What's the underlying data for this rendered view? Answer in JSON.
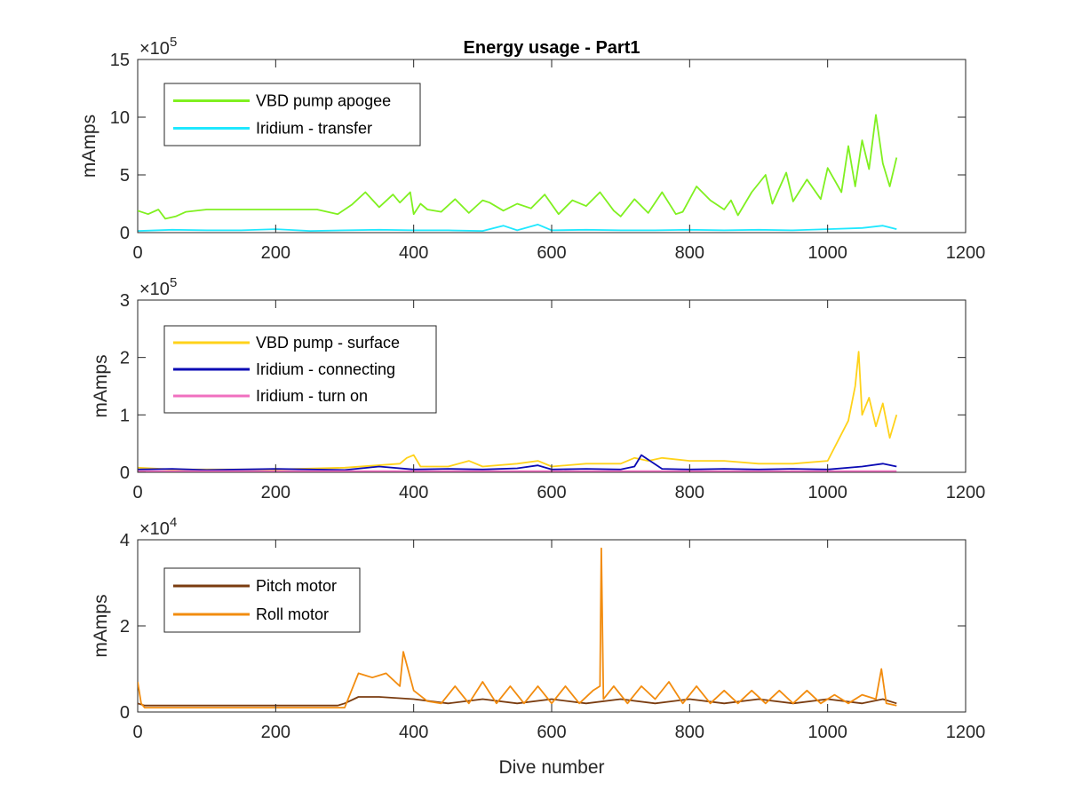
{
  "title": "Energy usage - Part1",
  "chart_data": [
    {
      "type": "line",
      "title": "Energy usage - Part1",
      "xlabel": "",
      "ylabel": "mAmps",
      "xlim": [
        0,
        1200
      ],
      "ylim": [
        0,
        15
      ],
      "exponent_label": "×10",
      "exponent_power": "5",
      "xticks": [
        "0",
        "200",
        "400",
        "600",
        "800",
        "1000",
        "1200"
      ],
      "yticks": [
        "0",
        "5",
        "10",
        "15"
      ],
      "legend_position": "top-left",
      "series": [
        {
          "name": "VBD pump apogee",
          "color": "#80f020",
          "x": [
            0,
            15,
            30,
            40,
            55,
            70,
            100,
            150,
            200,
            260,
            290,
            310,
            330,
            350,
            370,
            380,
            395,
            400,
            410,
            420,
            440,
            460,
            480,
            500,
            510,
            530,
            550,
            570,
            590,
            610,
            630,
            650,
            670,
            690,
            700,
            720,
            740,
            760,
            780,
            790,
            810,
            830,
            850,
            860,
            870,
            890,
            910,
            920,
            940,
            950,
            970,
            990,
            1000,
            1020,
            1030,
            1040,
            1050,
            1060,
            1070,
            1080,
            1090,
            1100
          ],
          "y": [
            1.9,
            1.6,
            2.0,
            1.2,
            1.4,
            1.8,
            2.0,
            2.0,
            2.0,
            2.0,
            1.6,
            2.4,
            3.5,
            2.2,
            3.3,
            2.6,
            3.5,
            1.6,
            2.5,
            2.0,
            1.8,
            2.9,
            1.7,
            2.8,
            2.6,
            1.9,
            2.5,
            2.1,
            3.3,
            1.6,
            2.8,
            2.3,
            3.5,
            1.9,
            1.4,
            2.9,
            1.7,
            3.5,
            1.6,
            1.8,
            4.0,
            2.8,
            2.0,
            2.8,
            1.5,
            3.5,
            5.0,
            2.5,
            5.2,
            2.7,
            4.6,
            2.9,
            5.6,
            3.5,
            7.5,
            4.0,
            8.0,
            5.5,
            10.2,
            6.0,
            4.0,
            6.5
          ]
        },
        {
          "name": "Iridium - transfer",
          "color": "#20e8ff",
          "x": [
            0,
            50,
            100,
            150,
            200,
            250,
            300,
            350,
            400,
            450,
            500,
            530,
            550,
            580,
            600,
            650,
            700,
            750,
            800,
            850,
            900,
            950,
            1000,
            1050,
            1080,
            1100
          ],
          "y": [
            0.15,
            0.25,
            0.2,
            0.2,
            0.3,
            0.15,
            0.2,
            0.25,
            0.2,
            0.2,
            0.15,
            0.6,
            0.2,
            0.7,
            0.2,
            0.25,
            0.2,
            0.2,
            0.25,
            0.2,
            0.25,
            0.2,
            0.3,
            0.4,
            0.6,
            0.3
          ]
        }
      ]
    },
    {
      "type": "line",
      "title": "",
      "xlabel": "",
      "ylabel": "mAmps",
      "xlim": [
        0,
        1200
      ],
      "ylim": [
        0,
        3
      ],
      "exponent_label": "×10",
      "exponent_power": "5",
      "xticks": [
        "0",
        "200",
        "400",
        "600",
        "800",
        "1000",
        "1200"
      ],
      "yticks": [
        "0",
        "1",
        "2",
        "3"
      ],
      "legend_position": "top-left",
      "series": [
        {
          "name": "VBD pump - surface",
          "color": "#ffd21a",
          "x": [
            0,
            50,
            100,
            200,
            300,
            380,
            390,
            400,
            410,
            450,
            480,
            500,
            550,
            580,
            600,
            650,
            700,
            720,
            740,
            760,
            800,
            850,
            900,
            950,
            1000,
            1030,
            1040,
            1045,
            1050,
            1060,
            1070,
            1080,
            1090,
            1100
          ],
          "y": [
            0.08,
            0.05,
            0.05,
            0.05,
            0.08,
            0.15,
            0.25,
            0.3,
            0.1,
            0.1,
            0.2,
            0.1,
            0.15,
            0.2,
            0.1,
            0.15,
            0.15,
            0.25,
            0.2,
            0.25,
            0.2,
            0.2,
            0.15,
            0.15,
            0.2,
            0.9,
            1.5,
            2.1,
            1.0,
            1.3,
            0.8,
            1.2,
            0.6,
            1.0
          ]
        },
        {
          "name": "Iridium - connecting",
          "color": "#0a0ab4",
          "x": [
            0,
            50,
            100,
            150,
            200,
            250,
            300,
            350,
            400,
            450,
            500,
            550,
            580,
            600,
            650,
            700,
            720,
            730,
            760,
            800,
            850,
            900,
            950,
            1000,
            1050,
            1080,
            1100
          ],
          "y": [
            0.05,
            0.06,
            0.04,
            0.05,
            0.06,
            0.05,
            0.04,
            0.1,
            0.05,
            0.06,
            0.05,
            0.07,
            0.12,
            0.05,
            0.06,
            0.05,
            0.1,
            0.3,
            0.06,
            0.05,
            0.06,
            0.05,
            0.06,
            0.05,
            0.1,
            0.15,
            0.1
          ]
        },
        {
          "name": "Iridium - turn on",
          "color": "#f070c0",
          "x": [
            0,
            200,
            400,
            600,
            800,
            1000,
            1100
          ],
          "y": [
            0.02,
            0.02,
            0.02,
            0.02,
            0.02,
            0.02,
            0.02
          ]
        }
      ]
    },
    {
      "type": "line",
      "title": "",
      "xlabel": "Dive number",
      "ylabel": "mAmps",
      "xlim": [
        0,
        1200
      ],
      "ylim": [
        0,
        4
      ],
      "exponent_label": "×10",
      "exponent_power": "4",
      "xticks": [
        "0",
        "200",
        "400",
        "600",
        "800",
        "1000",
        "1200"
      ],
      "yticks": [
        "0",
        "2",
        "4"
      ],
      "legend_position": "top-left",
      "series": [
        {
          "name": "Pitch motor",
          "color": "#7a3c10",
          "x": [
            0,
            10,
            50,
            100,
            150,
            200,
            250,
            290,
            300,
            320,
            350,
            400,
            450,
            500,
            550,
            600,
            650,
            700,
            750,
            800,
            850,
            900,
            950,
            1000,
            1050,
            1080,
            1100
          ],
          "y": [
            0.2,
            0.15,
            0.15,
            0.15,
            0.15,
            0.15,
            0.15,
            0.15,
            0.2,
            0.35,
            0.35,
            0.3,
            0.2,
            0.3,
            0.2,
            0.3,
            0.2,
            0.3,
            0.2,
            0.3,
            0.2,
            0.3,
            0.2,
            0.3,
            0.2,
            0.3,
            0.2
          ]
        },
        {
          "name": "Roll motor",
          "color": "#f28c0f",
          "x": [
            0,
            5,
            10,
            50,
            100,
            200,
            280,
            300,
            320,
            340,
            360,
            380,
            385,
            400,
            420,
            440,
            460,
            480,
            500,
            520,
            540,
            560,
            580,
            600,
            620,
            640,
            660,
            670,
            672,
            675,
            690,
            710,
            730,
            750,
            770,
            790,
            810,
            830,
            850,
            870,
            890,
            910,
            930,
            950,
            970,
            990,
            1010,
            1030,
            1050,
            1070,
            1078,
            1085,
            1100
          ],
          "y": [
            0.7,
            0.2,
            0.1,
            0.1,
            0.1,
            0.1,
            0.1,
            0.1,
            0.9,
            0.8,
            0.9,
            0.6,
            1.4,
            0.5,
            0.25,
            0.2,
            0.6,
            0.2,
            0.7,
            0.2,
            0.6,
            0.2,
            0.6,
            0.2,
            0.6,
            0.2,
            0.5,
            0.6,
            3.8,
            0.3,
            0.6,
            0.2,
            0.6,
            0.3,
            0.7,
            0.2,
            0.6,
            0.2,
            0.5,
            0.2,
            0.5,
            0.2,
            0.5,
            0.2,
            0.5,
            0.2,
            0.4,
            0.2,
            0.4,
            0.3,
            1.0,
            0.2,
            0.15
          ]
        }
      ]
    }
  ]
}
